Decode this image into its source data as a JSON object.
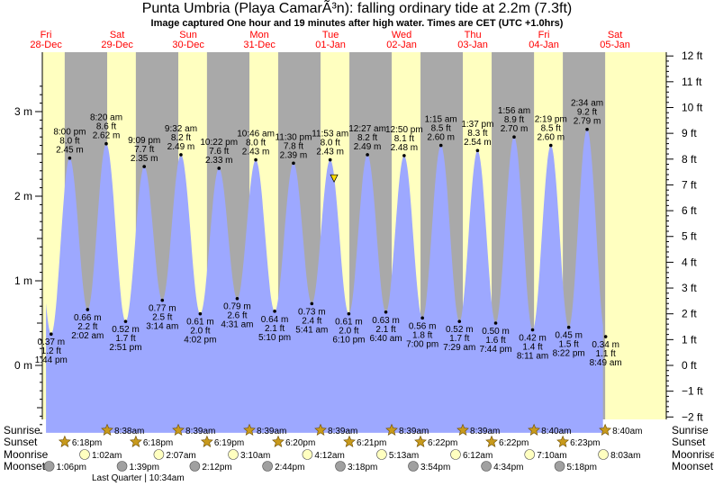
{
  "title": "Punta Umbria (Playa CamarÃ³n): falling  ordinary tide at 2.2m (7.3ft)",
  "subtitle": "Image captured One hour and 19 minutes after high water. Times are CET (UTC +1.0hrs)",
  "colors": {
    "night": "#a9a9a9",
    "day": "#ffffc0",
    "tide": "#9da8ff",
    "day_label": "#ff0000",
    "sun_marker": "#c89a1c",
    "moonrise_marker": "#ffffc0",
    "moonset_marker": "#a0a0a0",
    "current_marker": "#ffdd00"
  },
  "chart_data": {
    "type": "area",
    "title": "Punta Umbria (Playa CamarÃ³n): falling  ordinary tide at 2.2m (7.3ft)",
    "x_unit": "days from 00:00 Fri 28-Dec (CET)",
    "xlim": [
      0,
      8.33
    ],
    "ylim_m": [
      -0.85,
      3.3
    ],
    "grid": false,
    "left_axis": {
      "unit": "m",
      "ticks": [
        0,
        1,
        2,
        3
      ],
      "tick_labels": [
        "0 m",
        "1 m",
        "2 m",
        "3 m"
      ]
    },
    "right_axis": {
      "unit": "ft",
      "ticks": [
        -2,
        -1,
        0,
        1,
        2,
        3,
        4,
        5,
        6,
        7,
        8,
        9,
        10,
        11,
        12
      ],
      "tick_labels": [
        "−2 ft",
        "−1 ft",
        "0 ft",
        "1 ft",
        "2 ft",
        "3 ft",
        "4 ft",
        "5 ft",
        "6 ft",
        "7 ft",
        "8 ft",
        "9 ft",
        "10 ft",
        "11 ft",
        "12 ft"
      ]
    },
    "days": [
      {
        "dow": "Fri",
        "date": "28-Dec"
      },
      {
        "dow": "Sat",
        "date": "29-Dec"
      },
      {
        "dow": "Sun",
        "date": "30-Dec"
      },
      {
        "dow": "Mon",
        "date": "31-Dec"
      },
      {
        "dow": "Tue",
        "date": "01-Jan"
      },
      {
        "dow": "Wed",
        "date": "02-Jan"
      },
      {
        "dow": "Thu",
        "date": "03-Jan"
      },
      {
        "dow": "Fri",
        "date": "04-Jan"
      },
      {
        "dow": "Sat",
        "date": "05-Jan"
      }
    ],
    "tides": [
      {
        "t": 0.572,
        "type": "low",
        "time": "1:44 pm",
        "m": "0.37 m",
        "ft": "1.2 ft",
        "h": 0.37
      },
      {
        "t": 0.833,
        "type": "high",
        "time": "8:00 pm",
        "m": "2.45 m",
        "ft": "8.0 ft",
        "h": 2.45
      },
      {
        "t": 1.085,
        "type": "low",
        "time": "2:02 am",
        "m": "0.66 m",
        "ft": "2.2 ft",
        "h": 0.66
      },
      {
        "t": 1.347,
        "type": "high",
        "time": "8:20 am",
        "m": "2.62 m",
        "ft": "8.6 ft",
        "h": 2.62
      },
      {
        "t": 1.619,
        "type": "low",
        "time": "2:51 pm",
        "m": "0.52 m",
        "ft": "1.7 ft",
        "h": 0.52
      },
      {
        "t": 1.881,
        "type": "high",
        "time": "9:09 pm",
        "m": "2.35 m",
        "ft": "7.7 ft",
        "h": 2.35
      },
      {
        "t": 2.135,
        "type": "low",
        "time": "3:14 am",
        "m": "0.77 m",
        "ft": "2.5 ft",
        "h": 0.77
      },
      {
        "t": 2.397,
        "type": "high",
        "time": "9:32 am",
        "m": "2.49 m",
        "ft": "8.2 ft",
        "h": 2.49
      },
      {
        "t": 2.668,
        "type": "low",
        "time": "4:02 pm",
        "m": "0.61 m",
        "ft": "2.0 ft",
        "h": 0.61
      },
      {
        "t": 2.932,
        "type": "high",
        "time": "10:22 pm",
        "m": "2.33 m",
        "ft": "7.6 ft",
        "h": 2.33
      },
      {
        "t": 3.188,
        "type": "low",
        "time": "4:31 am",
        "m": "0.79 m",
        "ft": "2.6 ft",
        "h": 0.79
      },
      {
        "t": 3.449,
        "type": "high",
        "time": "10:46 am",
        "m": "2.43 m",
        "ft": "8.0 ft",
        "h": 2.43
      },
      {
        "t": 3.715,
        "type": "low",
        "time": "5:10 pm",
        "m": "0.64 m",
        "ft": "2.1 ft",
        "h": 0.64
      },
      {
        "t": 3.979,
        "type": "high",
        "time": "11:30 pm",
        "m": "2.39 m",
        "ft": "7.8 ft",
        "h": 2.39
      },
      {
        "t": 4.237,
        "type": "low",
        "time": "5:41 am",
        "m": "0.73 m",
        "ft": "2.4 ft",
        "h": 0.73
      },
      {
        "t": 4.495,
        "type": "high",
        "time": "11:53 am",
        "m": "2.43 m",
        "ft": "8.0 ft",
        "h": 2.43
      },
      {
        "t": 4.757,
        "type": "low",
        "time": "6:10 pm",
        "m": "0.61 m",
        "ft": "2.0 ft",
        "h": 0.61
      },
      {
        "t": 5.019,
        "type": "high",
        "time": "12:27 am",
        "m": "2.49 m",
        "ft": "8.2 ft",
        "h": 2.49
      },
      {
        "t": 5.278,
        "type": "low",
        "time": "6:40 am",
        "m": "0.63 m",
        "ft": "2.1 ft",
        "h": 0.63
      },
      {
        "t": 5.535,
        "type": "high",
        "time": "12:50 pm",
        "m": "2.48 m",
        "ft": "8.1 ft",
        "h": 2.48
      },
      {
        "t": 5.792,
        "type": "low",
        "time": "7:00 pm",
        "m": "0.56 m",
        "ft": "1.8 ft",
        "h": 0.56
      },
      {
        "t": 6.052,
        "type": "high",
        "time": "1:15 am",
        "m": "2.60 m",
        "ft": "8.5 ft",
        "h": 2.6
      },
      {
        "t": 6.312,
        "type": "low",
        "time": "7:29 am",
        "m": "0.52 m",
        "ft": "1.7 ft",
        "h": 0.52
      },
      {
        "t": 6.567,
        "type": "high",
        "time": "1:37 pm",
        "m": "2.54 m",
        "ft": "8.3 ft",
        "h": 2.54
      },
      {
        "t": 6.822,
        "type": "low",
        "time": "7:44 pm",
        "m": "0.50 m",
        "ft": "1.6 ft",
        "h": 0.5
      },
      {
        "t": 7.081,
        "type": "high",
        "time": "1:56 am",
        "m": "2.70 m",
        "ft": "8.9 ft",
        "h": 2.7
      },
      {
        "t": 7.341,
        "type": "low",
        "time": "8:11 am",
        "m": "0.42 m",
        "ft": "1.4 ft",
        "h": 0.42
      },
      {
        "t": 7.597,
        "type": "high",
        "time": "2:19 pm",
        "m": "2.60 m",
        "ft": "8.5 ft",
        "h": 2.6
      },
      {
        "t": 7.849,
        "type": "low",
        "time": "8:22 pm",
        "m": "0.45 m",
        "ft": "1.5 ft",
        "h": 0.45
      },
      {
        "t": 8.107,
        "type": "high",
        "time": "2:34 am",
        "m": "2.79 m",
        "ft": "9.2 ft",
        "h": 2.79
      },
      {
        "t": 8.368,
        "type": "low",
        "time": "8:49 am",
        "m": "0.34 m",
        "ft": "1.1 ft",
        "h": 0.34
      }
    ],
    "series_start_t": 0.5,
    "series_end_t": 8.33,
    "current": {
      "t": 4.55,
      "h": 2.2
    }
  },
  "rows": {
    "sunrise": {
      "label": "Sunrise",
      "events": [
        {
          "t": 1.36,
          "text": "8:38am"
        },
        {
          "t": 2.36,
          "text": "8:39am"
        },
        {
          "t": 3.36,
          "text": "8:39am"
        },
        {
          "t": 4.36,
          "text": "8:39am"
        },
        {
          "t": 5.36,
          "text": "8:39am"
        },
        {
          "t": 6.36,
          "text": "8:39am"
        },
        {
          "t": 7.361,
          "text": "8:40am"
        },
        {
          "t": 8.361,
          "text": "8:40am"
        }
      ]
    },
    "sunset": {
      "label": "Sunset",
      "events": [
        {
          "t": 0.763,
          "text": "6:18pm"
        },
        {
          "t": 1.763,
          "text": "6:18pm"
        },
        {
          "t": 2.763,
          "text": "6:19pm"
        },
        {
          "t": 3.764,
          "text": "6:20pm"
        },
        {
          "t": 4.765,
          "text": "6:21pm"
        },
        {
          "t": 5.765,
          "text": "6:22pm"
        },
        {
          "t": 6.765,
          "text": "6:22pm"
        },
        {
          "t": 7.766,
          "text": "6:23pm"
        }
      ]
    },
    "moonrise": {
      "label": "Moonrise",
      "events": [
        {
          "t": 1.043,
          "text": "1:02am"
        },
        {
          "t": 2.086,
          "text": "2:07am"
        },
        {
          "t": 3.132,
          "text": "3:10am"
        },
        {
          "t": 4.175,
          "text": "4:12am"
        },
        {
          "t": 5.219,
          "text": "5:13am"
        },
        {
          "t": 6.258,
          "text": "6:12am"
        },
        {
          "t": 7.299,
          "text": "7:10am"
        },
        {
          "t": 8.335,
          "text": "8:03am"
        }
      ]
    },
    "moonset": {
      "label": "Moonset",
      "events": [
        {
          "t": 0.545,
          "text": "1:06pm"
        },
        {
          "t": 1.569,
          "text": "1:39pm"
        },
        {
          "t": 2.592,
          "text": "2:12pm"
        },
        {
          "t": 3.614,
          "text": "2:44pm"
        },
        {
          "t": 4.638,
          "text": "3:18pm"
        },
        {
          "t": 5.663,
          "text": "3:54pm"
        },
        {
          "t": 6.69,
          "text": "4:34pm"
        },
        {
          "t": 7.721,
          "text": "5:18pm"
        }
      ]
    },
    "moon_phase": {
      "text": "Last Quarter | 10:34am"
    }
  }
}
